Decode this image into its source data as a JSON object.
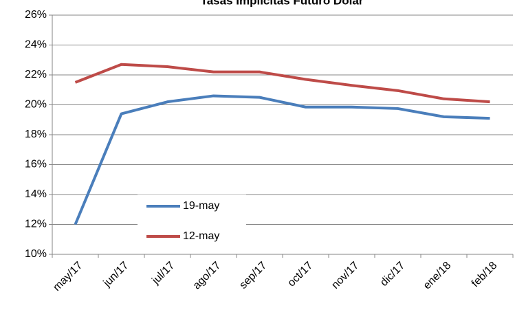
{
  "chart_data": {
    "type": "line",
    "title": "Tasas Implícitas Futuro Dólar",
    "categories": [
      "may/17",
      "jun/17",
      "jul/17",
      "ago/17",
      "sep/17",
      "oct/17",
      "nov/17",
      "dic/17",
      "ene/18",
      "feb/18"
    ],
    "series": [
      {
        "name": "19-may",
        "color": "#4a7ebb",
        "values": [
          12.0,
          19.4,
          20.2,
          20.6,
          20.5,
          19.85,
          19.85,
          19.75,
          19.2,
          19.1
        ]
      },
      {
        "name": "12-may",
        "color": "#be4b48",
        "values": [
          21.5,
          22.7,
          22.55,
          22.2,
          22.2,
          21.7,
          21.3,
          20.95,
          20.4,
          20.2
        ]
      }
    ],
    "ylim": [
      10,
      26
    ],
    "yticks": [
      {
        "value": 10,
        "label": "10%"
      },
      {
        "value": 12,
        "label": "12%"
      },
      {
        "value": 14,
        "label": "14%"
      },
      {
        "value": 16,
        "label": "16%"
      },
      {
        "value": 18,
        "label": "18%"
      },
      {
        "value": 20,
        "label": "20%"
      },
      {
        "value": 22,
        "label": "22%"
      },
      {
        "value": 24,
        "label": "24%"
      },
      {
        "value": 26,
        "label": "26%"
      }
    ],
    "grid": true
  }
}
